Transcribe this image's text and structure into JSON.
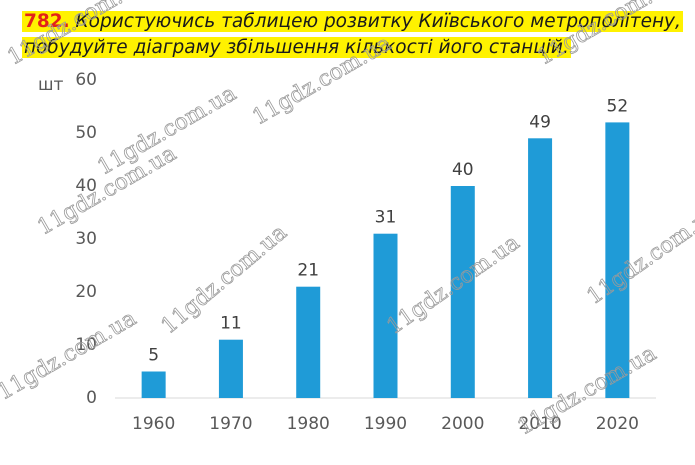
{
  "exercise": {
    "number": "782.",
    "lines": [
      "Користуючись таблицею розвитку Київського метрополітену,",
      "побудуйте діаграму збільшення кількості його станцій."
    ]
  },
  "watermark": "11gdz.com.ua",
  "chart_data": {
    "type": "bar",
    "y_label": "шт",
    "categories": [
      "1960",
      "1970",
      "1980",
      "1990",
      "2000",
      "2010",
      "2020"
    ],
    "values": [
      5,
      11,
      21,
      31,
      40,
      49,
      52
    ],
    "color": "#1f9bd7",
    "ylim": [
      0,
      60
    ],
    "yticks": [
      0,
      10,
      20,
      30,
      40,
      50,
      60
    ],
    "grid": false,
    "show_value_labels": true
  }
}
